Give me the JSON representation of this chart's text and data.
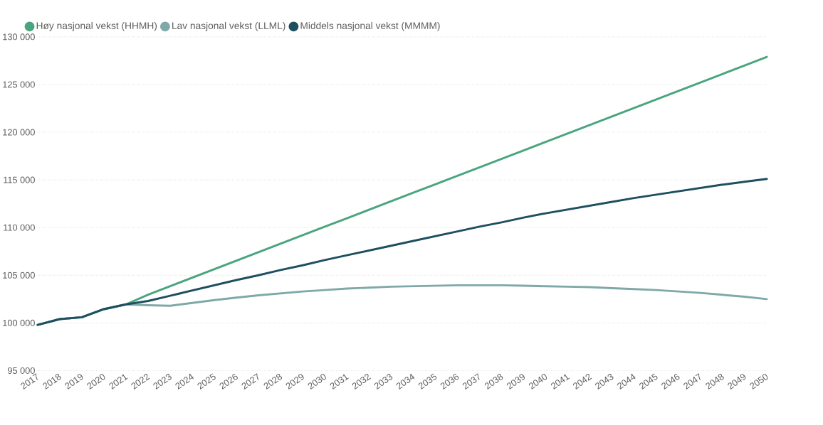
{
  "chart_data": {
    "type": "line",
    "categories": [
      "2017",
      "2018",
      "2019",
      "2020",
      "2021",
      "2022",
      "2023",
      "2024",
      "2025",
      "2026",
      "2027",
      "2028",
      "2029",
      "2030",
      "2031",
      "2032",
      "2033",
      "2034",
      "2035",
      "2036",
      "2037",
      "2038",
      "2039",
      "2040",
      "2041",
      "2042",
      "2043",
      "2044",
      "2045",
      "2046",
      "2047",
      "2048",
      "2049",
      "2050"
    ],
    "series": [
      {
        "name": "Høy nasjonal vekst (HHMH)",
        "color": "#4aa57f",
        "values": [
          99800,
          100400,
          100600,
          101450,
          101950,
          102970,
          103860,
          104750,
          105640,
          106530,
          107420,
          108310,
          109200,
          110090,
          110980,
          111870,
          112760,
          113650,
          114540,
          115430,
          116320,
          117210,
          118100,
          118990,
          119880,
          120770,
          121660,
          122550,
          123440,
          124330,
          125220,
          126110,
          127000,
          127900
        ]
      },
      {
        "name": "Lav nasjonal vekst (LLML)",
        "color": "#7fa9a8",
        "values": [
          99800,
          100400,
          100600,
          101450,
          101950,
          101850,
          101800,
          102100,
          102400,
          102650,
          102900,
          103100,
          103300,
          103450,
          103600,
          103700,
          103800,
          103850,
          103900,
          103950,
          103950,
          103950,
          103900,
          103850,
          103800,
          103750,
          103650,
          103550,
          103450,
          103300,
          103150,
          102950,
          102750,
          102500
        ]
      },
      {
        "name": "Middels nasjonal vekst (MMMM)",
        "color": "#1e4f60",
        "values": [
          99800,
          100400,
          100600,
          101450,
          101950,
          102300,
          102850,
          103400,
          103950,
          104500,
          105000,
          105550,
          106050,
          106600,
          107100,
          107600,
          108100,
          108600,
          109100,
          109600,
          110100,
          110550,
          111050,
          111500,
          111900,
          112300,
          112700,
          113100,
          113450,
          113800,
          114150,
          114500,
          114800,
          115100
        ]
      }
    ],
    "ylim": [
      95000,
      130000
    ],
    "yticks": [
      {
        "value": 95000,
        "label": "95 000"
      },
      {
        "value": 100000,
        "label": "100 000"
      },
      {
        "value": 105000,
        "label": "105 000"
      },
      {
        "value": 110000,
        "label": "110 000"
      },
      {
        "value": 115000,
        "label": "115 000"
      },
      {
        "value": 120000,
        "label": "120 000"
      },
      {
        "value": 125000,
        "label": "125 000"
      },
      {
        "value": 130000,
        "label": "130 000"
      }
    ],
    "grid": "y",
    "legend": "top left"
  }
}
